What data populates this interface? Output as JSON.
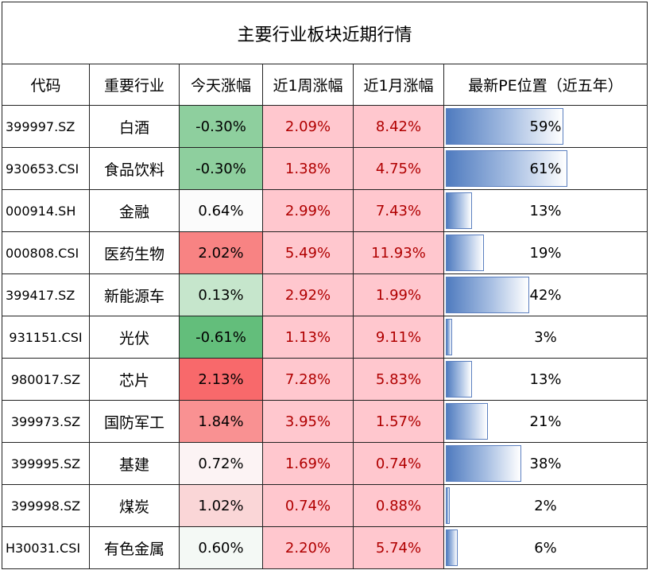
{
  "title": "主要行业板块近期行情",
  "headers": [
    "代码",
    "重要行业",
    "今天涨幅",
    "近1周涨幅",
    "近1月涨幅",
    "最新PE位置（近五年）"
  ],
  "rows": [
    {
      "code": "399997.SZ",
      "name": "白酒",
      "today": "-0.30%",
      "week": "2.09%",
      "month": "8.42%",
      "pe": "59%",
      "pe_value": 59,
      "today_color": "#8ecf9e"
    },
    {
      "code": "930653.CSI",
      "name": "食品饮料",
      "today": "-0.30%",
      "week": "1.38%",
      "month": "4.75%",
      "pe": "61%",
      "pe_value": 61,
      "today_color": "#8ecf9e"
    },
    {
      "code": "000914.SH",
      "name": "金融",
      "today": "0.64%",
      "week": "2.99%",
      "month": "7.43%",
      "pe": "13%",
      "pe_value": 13,
      "today_color": "#fbfbfb"
    },
    {
      "code": "000808.CSI",
      "name": "医药生物",
      "today": "2.02%",
      "week": "5.49%",
      "month": "11.93%",
      "pe": "19%",
      "pe_value": 19,
      "today_color": "#f88383"
    },
    {
      "code": "399417.SZ",
      "name": "新能源车",
      "today": "0.13%",
      "week": "2.92%",
      "month": "1.99%",
      "pe": "42%",
      "pe_value": 42,
      "today_color": "#c6e6cc"
    },
    {
      "code": "931151.CSI",
      "name": "光伏",
      "today": "-0.61%",
      "week": "1.13%",
      "month": "9.11%",
      "pe": "3%",
      "pe_value": 3,
      "today_color": "#63be7b"
    },
    {
      "code": "980017.SZ",
      "name": "芯片",
      "today": "2.13%",
      "week": "7.28%",
      "month": "5.83%",
      "pe": "13%",
      "pe_value": 13,
      "today_color": "#f8696b"
    },
    {
      "code": "399973.SZ",
      "name": "国防军工",
      "today": "1.84%",
      "week": "3.95%",
      "month": "1.57%",
      "pe": "21%",
      "pe_value": 21,
      "today_color": "#f99192"
    },
    {
      "code": "399995.SZ",
      "name": "基建",
      "today": "0.72%",
      "week": "1.69%",
      "month": "0.74%",
      "pe": "38%",
      "pe_value": 38,
      "today_color": "#fcf3f4"
    },
    {
      "code": "399998.SZ",
      "name": "煤炭",
      "today": "1.02%",
      "week": "0.74%",
      "month": "0.88%",
      "pe": "2%",
      "pe_value": 2,
      "today_color": "#fad6d7"
    },
    {
      "code": "H30031.CSI",
      "name": "有色金属",
      "today": "0.60%",
      "week": "2.20%",
      "month": "5.74%",
      "pe": "6%",
      "pe_value": 6,
      "today_color": "#f4f9f5"
    }
  ],
  "colors": {
    "week_fill": "#ffc7ce",
    "month_fill": "#ffc7ce",
    "positive_text": "#b00000",
    "pe_bar": "#4f7bbf"
  }
}
